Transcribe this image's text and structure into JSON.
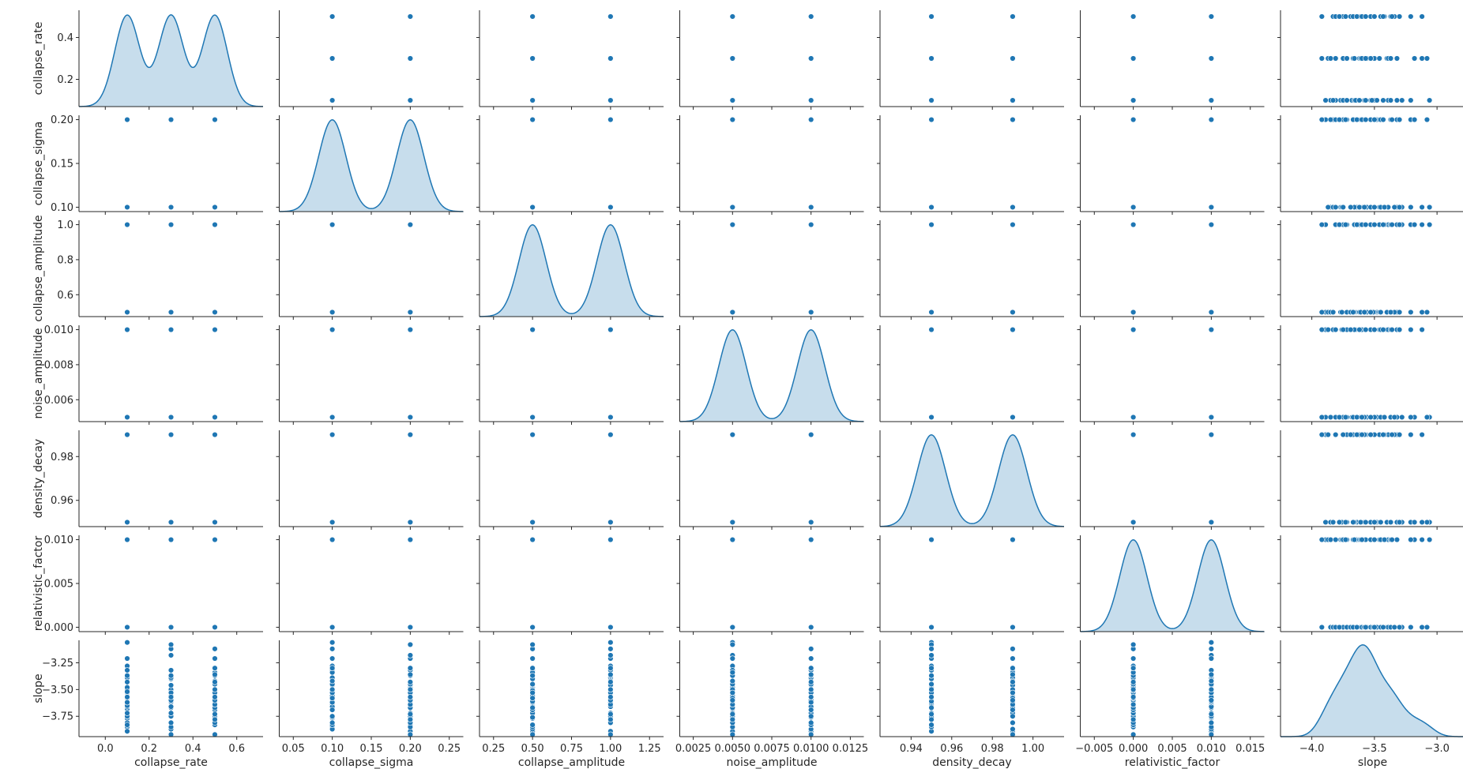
{
  "chart_data": {
    "type": "scatter",
    "title": "",
    "grid": false,
    "legend": false,
    "color": "#1f77b4",
    "variables": [
      {
        "name": "collapse_rate",
        "range": [
          -0.12,
          0.72
        ],
        "ticks": [
          0.0,
          0.2,
          0.4,
          0.6
        ],
        "tick_labels": [
          "0.0",
          "0.2",
          "0.4",
          "0.6"
        ],
        "yrange": [
          0.07,
          0.53
        ],
        "yticks": [
          0.2,
          0.4
        ],
        "ytick_labels": [
          "0.2",
          "0.4"
        ],
        "levels": [
          0.1,
          0.3,
          0.5
        ]
      },
      {
        "name": "collapse_sigma",
        "range": [
          0.032,
          0.268
        ],
        "ticks": [
          0.05,
          0.1,
          0.15,
          0.2,
          0.25
        ],
        "tick_labels": [
          "0.05",
          "0.10",
          "0.15",
          "0.20",
          "0.25"
        ],
        "yrange": [
          0.095,
          0.205
        ],
        "yticks": [
          0.1,
          0.15,
          0.2
        ],
        "ytick_labels": [
          "0.10",
          "0.15",
          "0.20"
        ],
        "levels": [
          0.1,
          0.2
        ]
      },
      {
        "name": "collapse_amplitude",
        "range": [
          0.16,
          1.34
        ],
        "ticks": [
          0.25,
          0.5,
          0.75,
          1.0,
          1.25
        ],
        "tick_labels": [
          "0.25",
          "0.50",
          "0.75",
          "1.00",
          "1.25"
        ],
        "yrange": [
          0.475,
          1.025
        ],
        "yticks": [
          0.6,
          0.8,
          1.0
        ],
        "ytick_labels": [
          "0.6",
          "0.8",
          "1.0"
        ],
        "levels": [
          0.5,
          1.0
        ]
      },
      {
        "name": "noise_amplitude",
        "range": [
          0.00164,
          0.01336
        ],
        "ticks": [
          0.0025,
          0.005,
          0.0075,
          0.01,
          0.0125
        ],
        "tick_labels": [
          "0.0025",
          "0.0050",
          "0.0075",
          "0.0100",
          "0.0125"
        ],
        "yrange": [
          0.00475,
          0.01025
        ],
        "yticks": [
          0.006,
          0.008,
          0.01
        ],
        "ytick_labels": [
          "0.006",
          "0.008",
          "0.010"
        ],
        "levels": [
          0.005,
          0.01
        ]
      },
      {
        "name": "density_decay",
        "range": [
          0.9247,
          1.0153
        ],
        "ticks": [
          0.94,
          0.96,
          0.98,
          1.0
        ],
        "tick_labels": [
          "0.94",
          "0.96",
          "0.98",
          "1.00"
        ],
        "yrange": [
          0.948,
          0.992
        ],
        "yticks": [
          0.96,
          0.98
        ],
        "ytick_labels": [
          "0.96",
          "0.98"
        ],
        "levels": [
          0.95,
          0.99
        ]
      },
      {
        "name": "relativistic_factor",
        "range": [
          -0.0068,
          0.0168
        ],
        "ticks": [
          -0.005,
          0.0,
          0.005,
          0.01,
          0.015
        ],
        "tick_labels": [
          "−0.005",
          "0.000",
          "0.005",
          "0.010",
          "0.015"
        ],
        "yrange": [
          -0.0005,
          0.0105
        ],
        "yticks": [
          0.0,
          0.005,
          0.01
        ],
        "ytick_labels": [
          "0.000",
          "0.005",
          "0.010"
        ],
        "levels": [
          0.0,
          0.01
        ]
      },
      {
        "name": "slope",
        "range": [
          -4.25,
          -2.78
        ],
        "ticks": [
          -4.0,
          -3.5,
          -3.0
        ],
        "tick_labels": [
          "−4.0",
          "−3.5",
          "−3.0"
        ],
        "yrange": [
          -3.94,
          -3.04
        ],
        "yticks": [
          -3.75,
          -3.5,
          -3.25
        ],
        "ytick_labels": [
          "−3.75",
          "−3.50",
          "−3.25"
        ]
      }
    ],
    "slope_samples": [
      -3.92,
      -3.89,
      -3.87,
      -3.85,
      -3.83,
      -3.81,
      -3.8,
      -3.78,
      -3.77,
      -3.76,
      -3.75,
      -3.74,
      -3.73,
      -3.72,
      -3.71,
      -3.7,
      -3.69,
      -3.68,
      -3.67,
      -3.66,
      -3.66,
      -3.65,
      -3.64,
      -3.64,
      -3.63,
      -3.62,
      -3.62,
      -3.61,
      -3.6,
      -3.6,
      -3.59,
      -3.58,
      -3.58,
      -3.57,
      -3.56,
      -3.56,
      -3.55,
      -3.54,
      -3.53,
      -3.53,
      -3.52,
      -3.51,
      -3.5,
      -3.5,
      -3.49,
      -3.48,
      -3.47,
      -3.46,
      -3.45,
      -3.44,
      -3.43,
      -3.42,
      -3.4,
      -3.39,
      -3.37,
      -3.36,
      -3.34,
      -3.32,
      -3.3,
      -3.28,
      -3.26,
      -3.24,
      -3.21,
      -3.18,
      -3.15,
      -3.12,
      -3.08,
      -3.06
    ],
    "rows": [
      "collapse_rate",
      "collapse_sigma",
      "collapse_amplitude",
      "noise_amplitude",
      "density_decay",
      "relativistic_factor",
      "slope"
    ],
    "columns": [
      "collapse_rate",
      "collapse_sigma",
      "collapse_amplitude",
      "noise_amplitude",
      "density_decay",
      "relativistic_factor",
      "slope"
    ],
    "diagonal": "kde"
  }
}
